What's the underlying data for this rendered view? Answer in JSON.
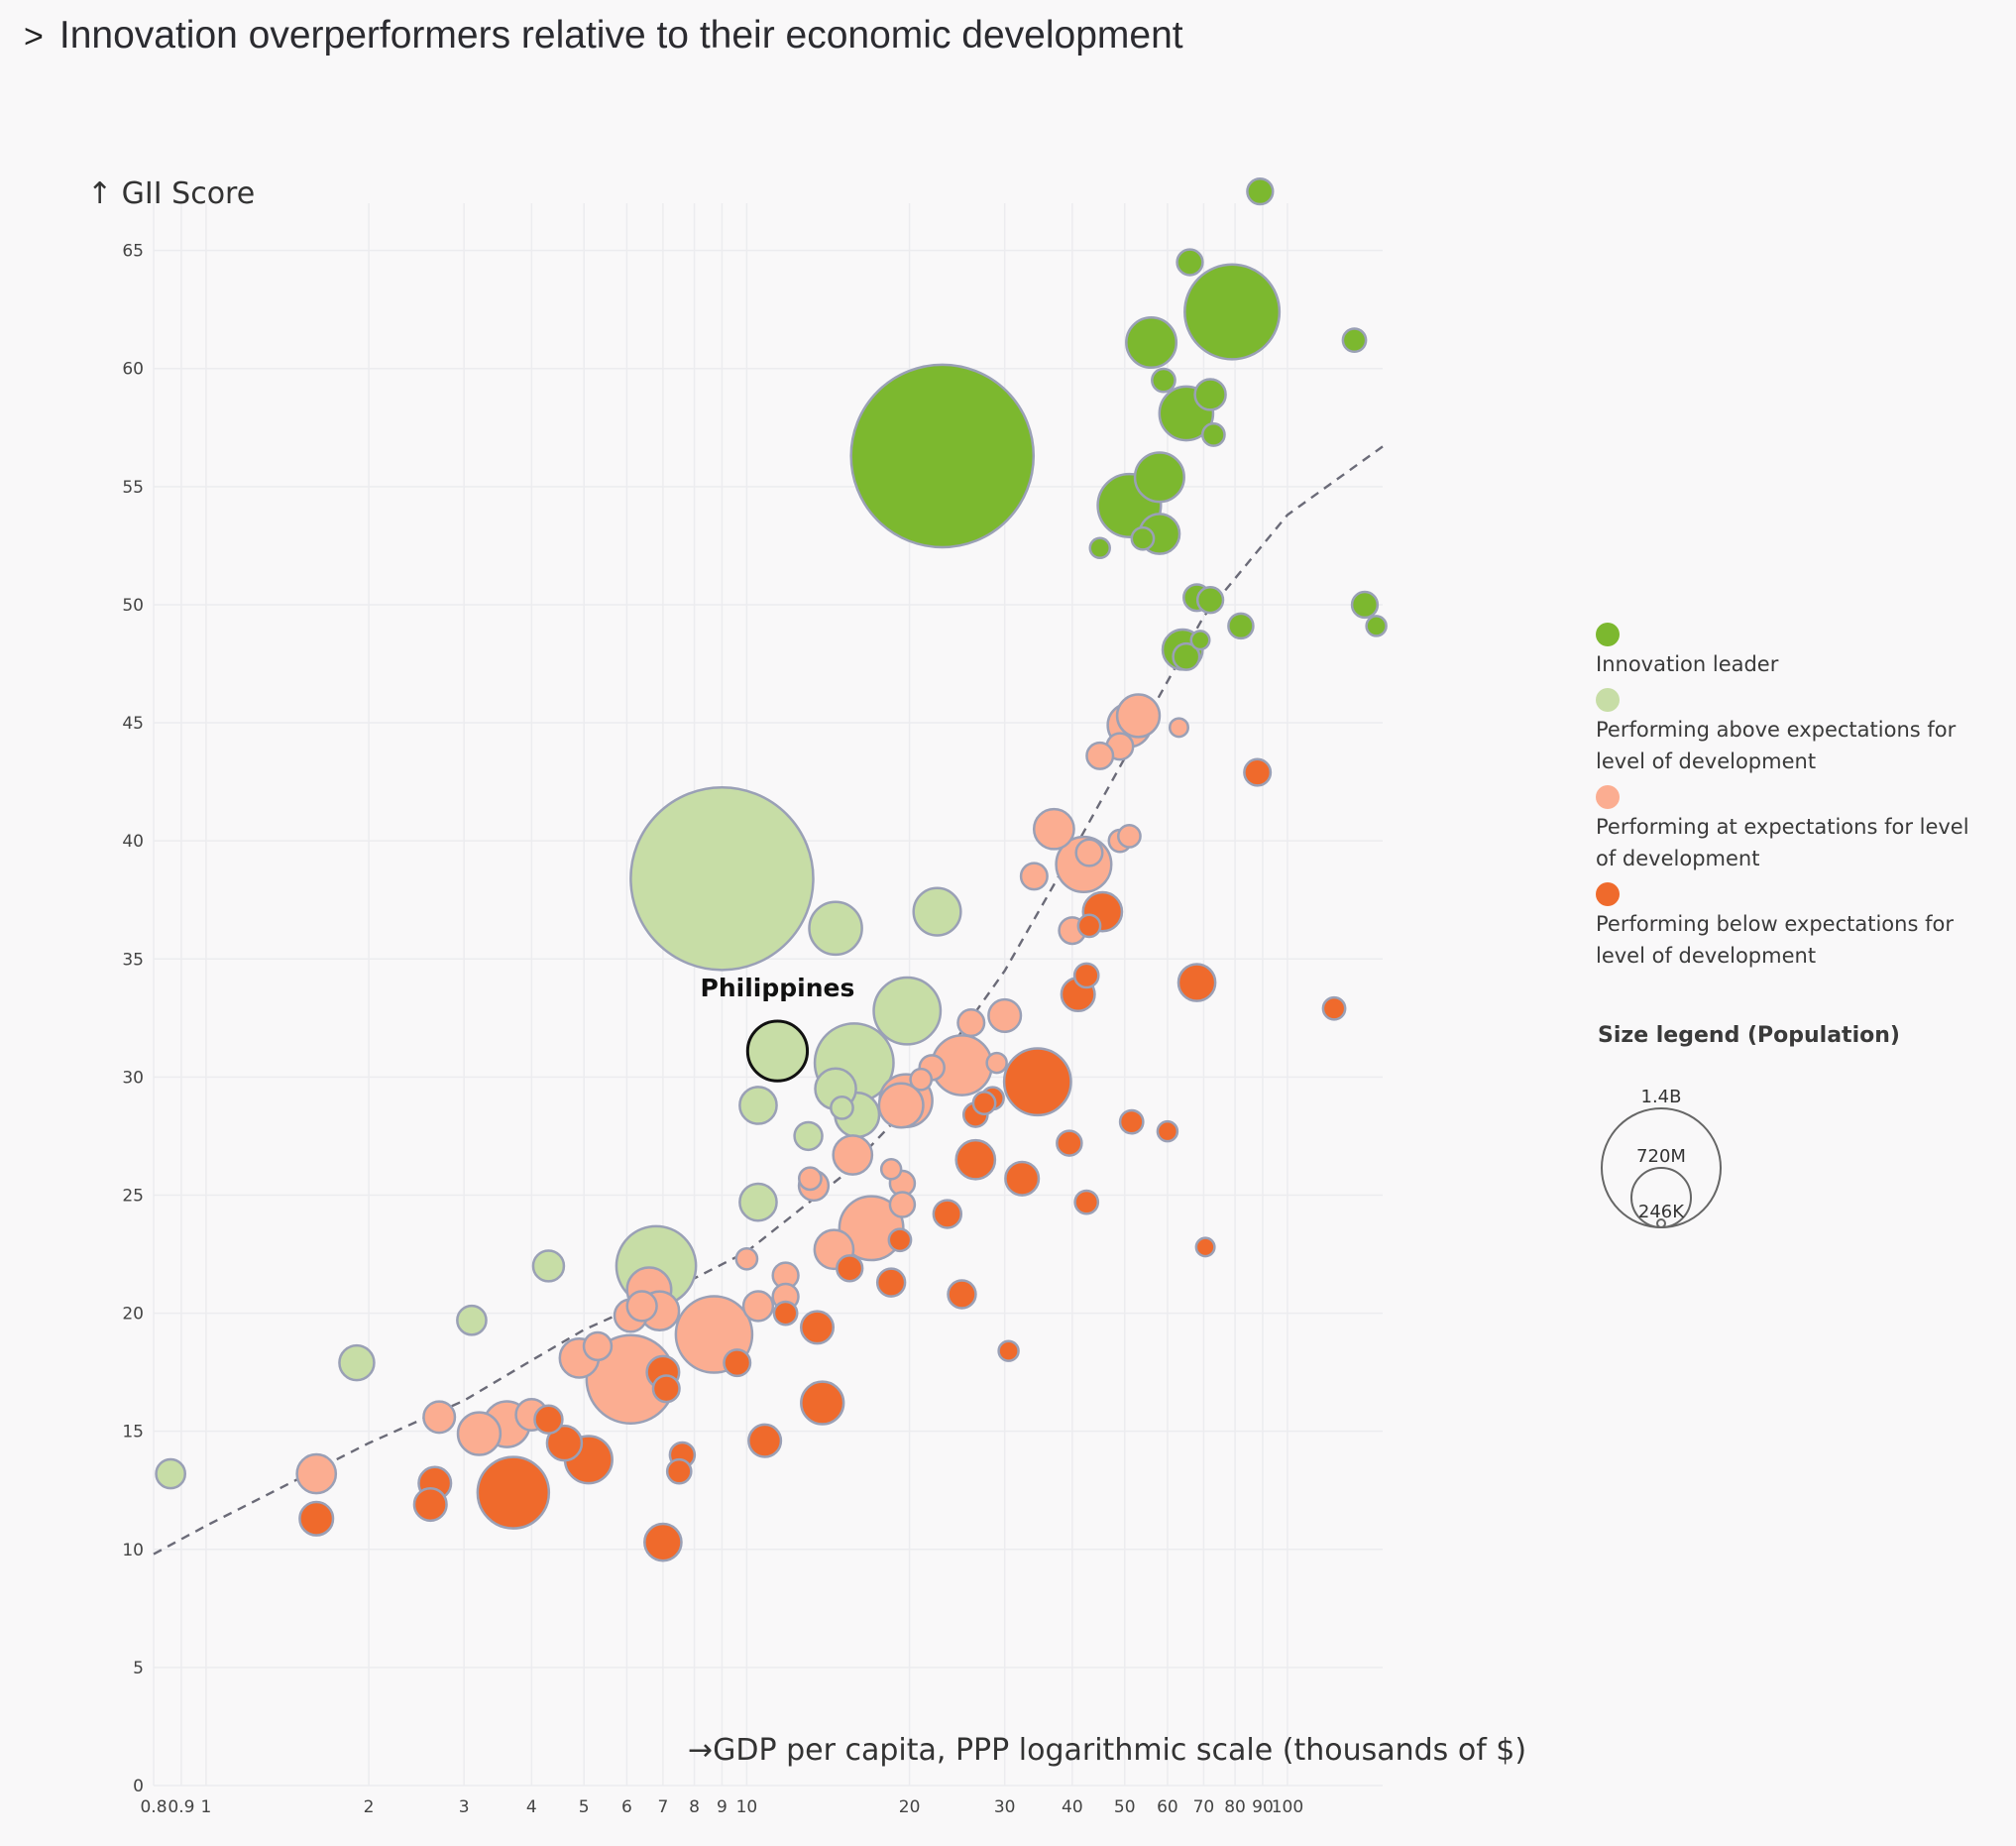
{
  "title": "Innovation overperformers relative to their economic development",
  "title_marker": ">",
  "colors": {
    "leader": "#7cb82f",
    "above": "#c7dda6",
    "at": "#fbad91",
    "below": "#ef6a2c",
    "outline": "#9aa0b6"
  },
  "legend": {
    "items": [
      {
        "key": "leader",
        "label": "Innovation leader"
      },
      {
        "key": "above",
        "label": "Performing above expectations for level of development"
      },
      {
        "key": "at",
        "label": "Performing at expectations for level of development"
      },
      {
        "key": "below",
        "label": "Performing below expectations for level of development"
      }
    ],
    "size_title": "Size legend (Population)",
    "size_labels": [
      "1.4B",
      "720M",
      "246K"
    ]
  },
  "chart_data": {
    "type": "scatter",
    "x_scale": "log",
    "xlabel": "GDP per capita, PPP logarithmic scale (thousands of $)",
    "ylabel": "GII Score",
    "x_axis_marker": "→",
    "y_axis_marker": "↑",
    "xlim": [
      0.8,
      150
    ],
    "ylim": [
      0,
      67
    ],
    "x_ticks": [
      {
        "v": 0.8,
        "label": "0.8"
      },
      {
        "v": 0.9,
        "label": "0.9"
      },
      {
        "v": 1,
        "label": "1"
      },
      {
        "v": 2,
        "label": "2"
      },
      {
        "v": 3,
        "label": "3"
      },
      {
        "v": 4,
        "label": "4"
      },
      {
        "v": 5,
        "label": "5"
      },
      {
        "v": 6,
        "label": "6"
      },
      {
        "v": 7,
        "label": "7"
      },
      {
        "v": 8,
        "label": "8"
      },
      {
        "v": 9,
        "label": "9"
      },
      {
        "v": 10,
        "label": "10"
      },
      {
        "v": 20,
        "label": "20"
      },
      {
        "v": 30,
        "label": "30"
      },
      {
        "v": 40,
        "label": "40"
      },
      {
        "v": 50,
        "label": "50"
      },
      {
        "v": 60,
        "label": "60"
      },
      {
        "v": 70,
        "label": "70"
      },
      {
        "v": 80,
        "label": "80"
      },
      {
        "v": 90,
        "label": "90"
      },
      {
        "v": 100,
        "label": "100"
      }
    ],
    "y_ticks": [
      0,
      5,
      10,
      15,
      20,
      25,
      30,
      35,
      40,
      45,
      50,
      55,
      60,
      65
    ],
    "grid": true,
    "legend_position": "right",
    "trend_line": {
      "style": "dashed",
      "points": [
        [
          0.8,
          9.8
        ],
        [
          1,
          11
        ],
        [
          2,
          14.5
        ],
        [
          3,
          16.3
        ],
        [
          4,
          18
        ],
        [
          5,
          19.3
        ],
        [
          7,
          20.8
        ],
        [
          10,
          22.6
        ],
        [
          15,
          25.8
        ],
        [
          20,
          28.8
        ],
        [
          30,
          34.5
        ],
        [
          40,
          39.5
        ],
        [
          50,
          43.5
        ],
        [
          70,
          49.5
        ],
        [
          100,
          53.8
        ],
        [
          150,
          56.7
        ]
      ]
    },
    "highlight": {
      "label": "Philippines",
      "x": 11.4,
      "y": 31.1,
      "pop": 110
    },
    "points": [
      {
        "x": 89,
        "y": 67.5,
        "pop": 9,
        "c": "leader"
      },
      {
        "x": 66,
        "y": 64.5,
        "pop": 9,
        "c": "leader"
      },
      {
        "x": 79,
        "y": 62.4,
        "pop": 330,
        "c": "leader"
      },
      {
        "x": 56,
        "y": 61.1,
        "pop": 70,
        "c": "leader"
      },
      {
        "x": 133,
        "y": 61.2,
        "pop": 6,
        "c": "leader"
      },
      {
        "x": 59,
        "y": 59.5,
        "pop": 6,
        "c": "leader"
      },
      {
        "x": 72,
        "y": 58.9,
        "pop": 17,
        "c": "leader"
      },
      {
        "x": 65,
        "y": 58.1,
        "pop": 84,
        "c": "leader"
      },
      {
        "x": 73,
        "y": 57.2,
        "pop": 5,
        "c": "leader"
      },
      {
        "x": 23,
        "y": 56.3,
        "pop": 1400,
        "c": "leader"
      },
      {
        "x": 58,
        "y": 55.4,
        "pop": 67,
        "c": "leader"
      },
      {
        "x": 51,
        "y": 54.2,
        "pop": 126,
        "c": "leader"
      },
      {
        "x": 58,
        "y": 53.0,
        "pop": 38,
        "c": "leader"
      },
      {
        "x": 54,
        "y": 52.8,
        "pop": 5,
        "c": "leader"
      },
      {
        "x": 45,
        "y": 52.4,
        "pop": 3,
        "c": "leader"
      },
      {
        "x": 68,
        "y": 50.3,
        "pop": 10,
        "c": "leader"
      },
      {
        "x": 72,
        "y": 50.2,
        "pop": 9,
        "c": "leader"
      },
      {
        "x": 139,
        "y": 50.0,
        "pop": 9,
        "c": "leader"
      },
      {
        "x": 82,
        "y": 49.1,
        "pop": 8,
        "c": "leader"
      },
      {
        "x": 146,
        "y": 49.1,
        "pop": 3,
        "c": "leader"
      },
      {
        "x": 69,
        "y": 48.5,
        "pop": 2,
        "c": "leader"
      },
      {
        "x": 64,
        "y": 48.1,
        "pop": 38,
        "c": "leader"
      },
      {
        "x": 65,
        "y": 47.8,
        "pop": 10,
        "c": "leader"
      },
      {
        "x": 9,
        "y": 38.4,
        "pop": 1400,
        "c": "above"
      },
      {
        "x": 14.6,
        "y": 36.3,
        "pop": 80,
        "c": "above"
      },
      {
        "x": 22.5,
        "y": 37.0,
        "pop": 60,
        "c": "above"
      },
      {
        "x": 19.8,
        "y": 32.8,
        "pop": 145,
        "c": "above"
      },
      {
        "x": 15.8,
        "y": 30.6,
        "pop": 215,
        "c": "above"
      },
      {
        "x": 14.6,
        "y": 29.5,
        "pop": 40,
        "c": "above"
      },
      {
        "x": 16,
        "y": 28.4,
        "pop": 50,
        "c": "above"
      },
      {
        "x": 10.5,
        "y": 28.8,
        "pop": 30,
        "c": "above"
      },
      {
        "x": 13,
        "y": 27.5,
        "pop": 12,
        "c": "above"
      },
      {
        "x": 10.5,
        "y": 24.7,
        "pop": 30,
        "c": "above"
      },
      {
        "x": 6.8,
        "y": 22.0,
        "pop": 220,
        "c": "above"
      },
      {
        "x": 4.3,
        "y": 22.0,
        "pop": 17,
        "c": "above"
      },
      {
        "x": 3.1,
        "y": 19.7,
        "pop": 14,
        "c": "above"
      },
      {
        "x": 1.9,
        "y": 17.9,
        "pop": 25,
        "c": "above"
      },
      {
        "x": 0.86,
        "y": 13.2,
        "pop": 14,
        "c": "above"
      },
      {
        "x": 15,
        "y": 28.7,
        "pop": 5,
        "c": "above"
      },
      {
        "x": 53,
        "y": 45.3,
        "pop": 45,
        "c": "at"
      },
      {
        "x": 51,
        "y": 44.9,
        "pop": 47,
        "c": "at"
      },
      {
        "x": 63,
        "y": 44.8,
        "pop": 2,
        "c": "at"
      },
      {
        "x": 49,
        "y": 44.0,
        "pop": 10,
        "c": "at"
      },
      {
        "x": 45,
        "y": 43.6,
        "pop": 10,
        "c": "at"
      },
      {
        "x": 37,
        "y": 40.5,
        "pop": 38,
        "c": "at"
      },
      {
        "x": 49,
        "y": 40.0,
        "pop": 5,
        "c": "at"
      },
      {
        "x": 51,
        "y": 40.2,
        "pop": 5,
        "c": "at"
      },
      {
        "x": 43,
        "y": 39.5,
        "pop": 10,
        "c": "at"
      },
      {
        "x": 42,
        "y": 39.0,
        "pop": 90,
        "c": "at"
      },
      {
        "x": 34,
        "y": 38.5,
        "pop": 10,
        "c": "at"
      },
      {
        "x": 40,
        "y": 36.2,
        "pop": 10,
        "c": "at"
      },
      {
        "x": 30,
        "y": 32.6,
        "pop": 20,
        "c": "at"
      },
      {
        "x": 26,
        "y": 32.3,
        "pop": 10,
        "c": "at"
      },
      {
        "x": 25,
        "y": 30.5,
        "pop": 110,
        "c": "at"
      },
      {
        "x": 29,
        "y": 30.6,
        "pop": 3,
        "c": "at"
      },
      {
        "x": 21,
        "y": 29.9,
        "pop": 4,
        "c": "at"
      },
      {
        "x": 22,
        "y": 30.4,
        "pop": 8,
        "c": "at"
      },
      {
        "x": 19.7,
        "y": 29.0,
        "pop": 80,
        "c": "at"
      },
      {
        "x": 19.3,
        "y": 28.8,
        "pop": 50,
        "c": "at"
      },
      {
        "x": 15.7,
        "y": 26.7,
        "pop": 35,
        "c": "at"
      },
      {
        "x": 13.3,
        "y": 25.4,
        "pop": 15,
        "c": "at"
      },
      {
        "x": 13.1,
        "y": 25.7,
        "pop": 5,
        "c": "at"
      },
      {
        "x": 18.5,
        "y": 26.1,
        "pop": 3,
        "c": "at"
      },
      {
        "x": 19.4,
        "y": 25.5,
        "pop": 8,
        "c": "at"
      },
      {
        "x": 19.4,
        "y": 24.6,
        "pop": 8,
        "c": "at"
      },
      {
        "x": 17,
        "y": 23.6,
        "pop": 130,
        "c": "at"
      },
      {
        "x": 14.5,
        "y": 22.7,
        "pop": 35,
        "c": "at"
      },
      {
        "x": 10,
        "y": 22.3,
        "pop": 4,
        "c": "at"
      },
      {
        "x": 11.8,
        "y": 21.6,
        "pop": 9,
        "c": "at"
      },
      {
        "x": 11.8,
        "y": 20.7,
        "pop": 9,
        "c": "at"
      },
      {
        "x": 10.5,
        "y": 20.3,
        "pop": 15,
        "c": "at"
      },
      {
        "x": 8.7,
        "y": 19.1,
        "pop": 200,
        "c": "at"
      },
      {
        "x": 6.6,
        "y": 21.0,
        "pop": 50,
        "c": "at"
      },
      {
        "x": 6.4,
        "y": 20.3,
        "pop": 15,
        "c": "at"
      },
      {
        "x": 6.9,
        "y": 20.1,
        "pop": 35,
        "c": "at"
      },
      {
        "x": 6.1,
        "y": 19.9,
        "pop": 20,
        "c": "at"
      },
      {
        "x": 5.3,
        "y": 18.6,
        "pop": 12,
        "c": "at"
      },
      {
        "x": 4.9,
        "y": 18.1,
        "pop": 35,
        "c": "at"
      },
      {
        "x": 6.1,
        "y": 17.2,
        "pop": 280,
        "c": "at"
      },
      {
        "x": 2.7,
        "y": 15.6,
        "pop": 18,
        "c": "at"
      },
      {
        "x": 3.2,
        "y": 14.9,
        "pop": 45,
        "c": "at"
      },
      {
        "x": 3.6,
        "y": 15.3,
        "pop": 55,
        "c": "at"
      },
      {
        "x": 4.0,
        "y": 15.7,
        "pop": 18,
        "c": "at"
      },
      {
        "x": 1.6,
        "y": 13.2,
        "pop": 35,
        "c": "at"
      },
      {
        "x": 88,
        "y": 42.9,
        "pop": 10,
        "c": "below"
      },
      {
        "x": 45.5,
        "y": 37.0,
        "pop": 35,
        "c": "below"
      },
      {
        "x": 43,
        "y": 36.4,
        "pop": 5,
        "c": "below"
      },
      {
        "x": 42.5,
        "y": 34.3,
        "pop": 7,
        "c": "below"
      },
      {
        "x": 41,
        "y": 33.5,
        "pop": 22,
        "c": "below"
      },
      {
        "x": 68,
        "y": 34.0,
        "pop": 30,
        "c": "below"
      },
      {
        "x": 122,
        "y": 32.9,
        "pop": 5,
        "c": "below"
      },
      {
        "x": 34.5,
        "y": 29.8,
        "pop": 145,
        "c": "below"
      },
      {
        "x": 28.5,
        "y": 29.1,
        "pop": 5,
        "c": "below"
      },
      {
        "x": 27.5,
        "y": 28.9,
        "pop": 5,
        "c": "below"
      },
      {
        "x": 26.5,
        "y": 28.4,
        "pop": 7,
        "c": "below"
      },
      {
        "x": 51.5,
        "y": 28.1,
        "pop": 6,
        "c": "below"
      },
      {
        "x": 60,
        "y": 27.7,
        "pop": 3,
        "c": "below"
      },
      {
        "x": 39.5,
        "y": 27.2,
        "pop": 8,
        "c": "below"
      },
      {
        "x": 26.5,
        "y": 26.5,
        "pop": 35,
        "c": "below"
      },
      {
        "x": 32.3,
        "y": 25.7,
        "pop": 22,
        "c": "below"
      },
      {
        "x": 42.5,
        "y": 24.7,
        "pop": 6,
        "c": "below"
      },
      {
        "x": 23.5,
        "y": 24.2,
        "pop": 12,
        "c": "below"
      },
      {
        "x": 19.2,
        "y": 23.1,
        "pop": 5,
        "c": "below"
      },
      {
        "x": 70.5,
        "y": 22.8,
        "pop": 2,
        "c": "below"
      },
      {
        "x": 15.5,
        "y": 21.9,
        "pop": 9,
        "c": "below"
      },
      {
        "x": 18.5,
        "y": 21.3,
        "pop": 12,
        "c": "below"
      },
      {
        "x": 25,
        "y": 20.8,
        "pop": 12,
        "c": "below"
      },
      {
        "x": 11.8,
        "y": 20.0,
        "pop": 6,
        "c": "below"
      },
      {
        "x": 13.5,
        "y": 19.4,
        "pop": 20,
        "c": "below"
      },
      {
        "x": 30.5,
        "y": 18.4,
        "pop": 3,
        "c": "below"
      },
      {
        "x": 9.6,
        "y": 17.9,
        "pop": 10,
        "c": "below"
      },
      {
        "x": 7,
        "y": 17.5,
        "pop": 20,
        "c": "below"
      },
      {
        "x": 7.1,
        "y": 16.8,
        "pop": 10,
        "c": "below"
      },
      {
        "x": 13.8,
        "y": 16.2,
        "pop": 45,
        "c": "below"
      },
      {
        "x": 4.3,
        "y": 15.5,
        "pop": 12,
        "c": "below"
      },
      {
        "x": 10.8,
        "y": 14.6,
        "pop": 20,
        "c": "below"
      },
      {
        "x": 4.6,
        "y": 14.5,
        "pop": 25,
        "c": "below"
      },
      {
        "x": 5.1,
        "y": 13.8,
        "pop": 60,
        "c": "below"
      },
      {
        "x": 7.6,
        "y": 14.0,
        "pop": 8,
        "c": "below"
      },
      {
        "x": 7.5,
        "y": 13.3,
        "pop": 7,
        "c": "below"
      },
      {
        "x": 2.65,
        "y": 12.8,
        "pop": 20,
        "c": "below"
      },
      {
        "x": 2.6,
        "y": 11.9,
        "pop": 20,
        "c": "below"
      },
      {
        "x": 3.7,
        "y": 12.4,
        "pop": 170,
        "c": "below"
      },
      {
        "x": 1.6,
        "y": 11.3,
        "pop": 22,
        "c": "below"
      },
      {
        "x": 7.0,
        "y": 10.3,
        "pop": 30,
        "c": "below"
      }
    ]
  }
}
